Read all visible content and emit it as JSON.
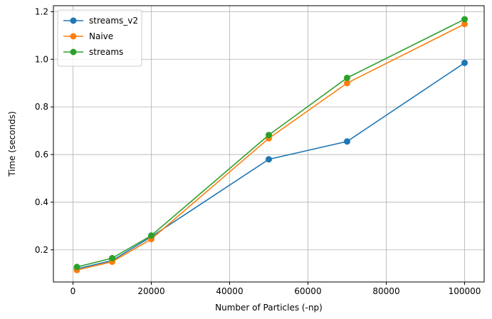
{
  "chart_data": {
    "type": "line",
    "xlabel": "Number of Particles (-np)",
    "ylabel": "Time (seconds)",
    "xlim": [
      -5000,
      105000
    ],
    "ylim": [
      0.065,
      1.225
    ],
    "x_ticks": [
      0,
      20000,
      40000,
      60000,
      80000,
      100000
    ],
    "y_ticks": [
      0.2,
      0.4,
      0.6,
      0.8,
      1.0,
      1.2
    ],
    "x_tick_labels": [
      "0",
      "20000",
      "40000",
      "60000",
      "80000",
      "100000"
    ],
    "y_tick_labels": [
      "0.2",
      "0.4",
      "0.6",
      "0.8",
      "1.0",
      "1.2"
    ],
    "grid": true,
    "legend_position": "top-left",
    "x": [
      1000,
      10000,
      20000,
      50000,
      70000,
      100000
    ],
    "series": [
      {
        "name": "streams_v2",
        "color": "#1f77b4",
        "values": [
          0.12,
          0.155,
          0.255,
          0.58,
          0.655,
          0.985
        ]
      },
      {
        "name": "Naive",
        "color": "#ff7f0e",
        "values": [
          0.115,
          0.15,
          0.245,
          0.668,
          0.9,
          1.148
        ]
      },
      {
        "name": "streams",
        "color": "#2ca02c",
        "values": [
          0.128,
          0.165,
          0.26,
          0.682,
          0.922,
          1.168
        ]
      }
    ]
  }
}
